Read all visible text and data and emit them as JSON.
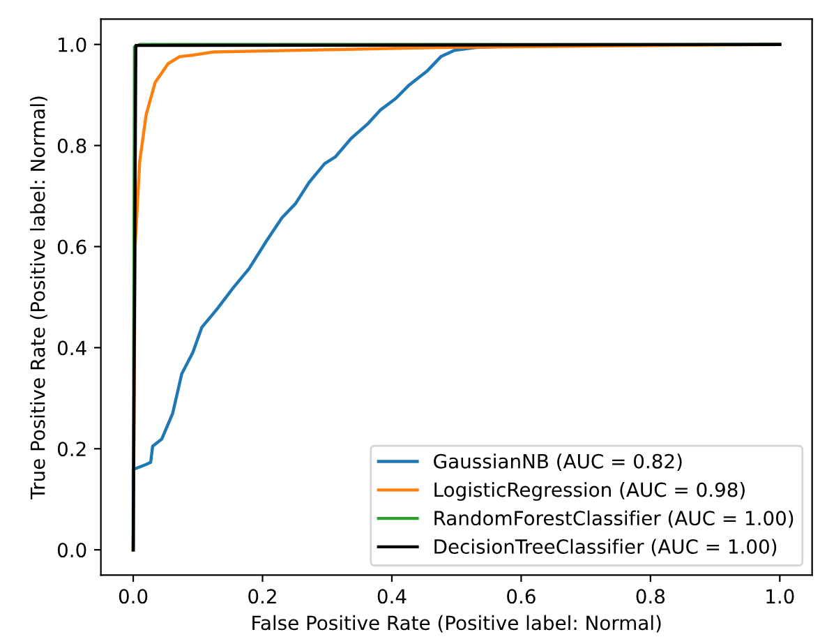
{
  "chart_data": {
    "type": "line",
    "xlabel": "False Positive Rate (Positive label: Normal)",
    "ylabel": "True Positive Rate (Positive label: Normal)",
    "xlim": [
      -0.05,
      1.05
    ],
    "ylim": [
      -0.05,
      1.05
    ],
    "xticks": [
      {
        "value": 0,
        "label": "0.0"
      },
      0.2,
      0.4,
      0.6,
      0.8,
      {
        "value": 1,
        "label": "1.0"
      }
    ],
    "yticks": [
      {
        "value": 0,
        "label": "0.0"
      },
      0.2,
      0.4,
      0.6,
      0.8,
      {
        "value": 1,
        "label": "1.0"
      }
    ],
    "legend": "bottom right",
    "grid": false,
    "line_style": "solid",
    "marker": "none",
    "series": [
      {
        "name": "GaussianNB (AUC = 0.82)",
        "color": "#1f77b4",
        "x": [
          0,
          0,
          0.02,
          0.027,
          0.03,
          0.044,
          0.061,
          0.075,
          0.092,
          0.106,
          0.13,
          0.155,
          0.179,
          0.206,
          0.23,
          0.251,
          0.272,
          0.296,
          0.313,
          0.337,
          0.362,
          0.382,
          0.406,
          0.427,
          0.455,
          0.476,
          0.496,
          0.53,
          0.63,
          1.0
        ],
        "values": [
          0,
          0.159,
          0.169,
          0.173,
          0.205,
          0.219,
          0.27,
          0.348,
          0.39,
          0.44,
          0.477,
          0.519,
          0.556,
          0.611,
          0.657,
          0.685,
          0.727,
          0.764,
          0.778,
          0.814,
          0.842,
          0.87,
          0.893,
          0.92,
          0.948,
          0.976,
          0.988,
          0.994,
          0.999,
          1.0
        ]
      },
      {
        "name": "LogisticRegression (AUC = 0.98)",
        "color": "#ff7f0e",
        "x": [
          0,
          0.003,
          0.01,
          0.02,
          0.034,
          0.054,
          0.072,
          0.093,
          0.124,
          0.2,
          0.476,
          1.0
        ],
        "values": [
          0,
          0.602,
          0.768,
          0.861,
          0.925,
          0.962,
          0.976,
          0.979,
          0.985,
          0.987,
          0.994,
          1.0
        ]
      },
      {
        "name": "RandomForestClassifier (AUC = 1.00)",
        "color": "#2ca02c",
        "x": [
          0,
          0.002,
          0.01,
          1.0
        ],
        "values": [
          0,
          0.995,
          1.0,
          1.0
        ]
      },
      {
        "name": "DecisionTreeClassifier (AUC = 1.00)",
        "color": "#000000",
        "x": [
          0,
          0.004,
          1.0
        ],
        "values": [
          0,
          0.998,
          1.0
        ]
      }
    ]
  }
}
